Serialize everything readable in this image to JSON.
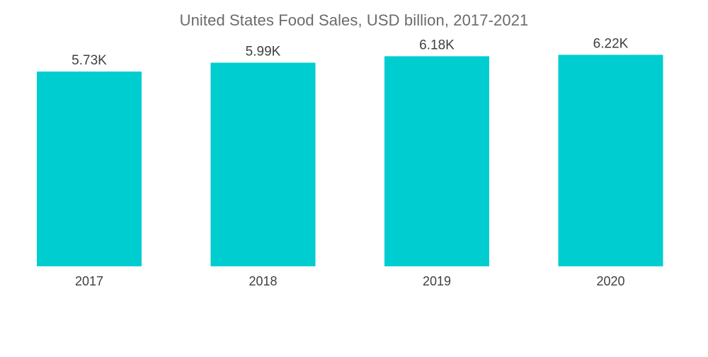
{
  "chart_data": {
    "type": "bar",
    "title": "United States Food Sales, USD billion, 2017-2021",
    "categories": [
      "2017",
      "2018",
      "2019",
      "2020"
    ],
    "values": [
      5730,
      5990,
      6180,
      6220
    ],
    "data_labels": [
      "5.73K",
      "5.99K",
      "6.18K",
      "6.22K"
    ],
    "xlabel": "",
    "ylabel": "",
    "ylim": [
      0,
      7000
    ],
    "grid": false,
    "legend": "none",
    "bar_color": "#00cdd0"
  }
}
